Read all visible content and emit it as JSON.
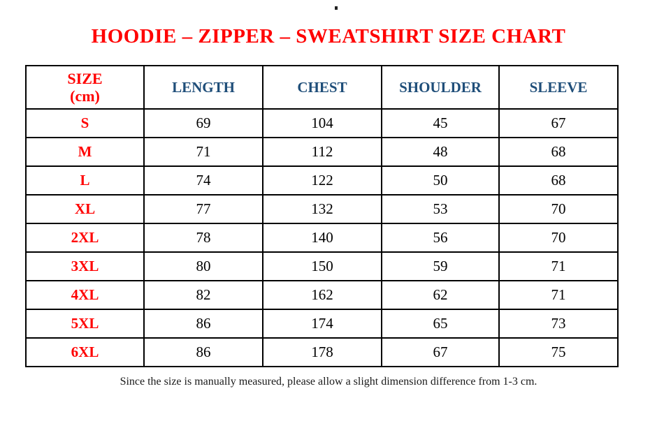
{
  "page": {
    "title": "HOODIE – ZIPPER – SWEATSHIRT SIZE CHART",
    "footnote": "Since the size is manually measured, please allow a slight dimension difference from 1-3 cm."
  },
  "colors": {
    "title_red": "#ff0000",
    "size_label_red": "#ff0000",
    "header_navy": "#1f4e79",
    "value_black": "#000000",
    "grid_border": "#000000",
    "background": "#ffffff"
  },
  "table": {
    "header": {
      "size_line1": "SIZE",
      "size_line2": "(cm)",
      "columns": [
        "LENGTH",
        "CHEST",
        "SHOULDER",
        "SLEEVE"
      ]
    },
    "rows": [
      {
        "size": "S",
        "values": [
          "69",
          "104",
          "45",
          "67"
        ]
      },
      {
        "size": "M",
        "values": [
          "71",
          "112",
          "48",
          "68"
        ]
      },
      {
        "size": "L",
        "values": [
          "74",
          "122",
          "50",
          "68"
        ]
      },
      {
        "size": "XL",
        "values": [
          "77",
          "132",
          "53",
          "70"
        ]
      },
      {
        "size": "2XL",
        "values": [
          "78",
          "140",
          "56",
          "70"
        ]
      },
      {
        "size": "3XL",
        "values": [
          "80",
          "150",
          "59",
          "71"
        ]
      },
      {
        "size": "4XL",
        "values": [
          "82",
          "162",
          "62",
          "71"
        ]
      },
      {
        "size": "5XL",
        "values": [
          "86",
          "174",
          "65",
          "73"
        ]
      },
      {
        "size": "6XL",
        "values": [
          "86",
          "178",
          "67",
          "75"
        ]
      }
    ]
  },
  "chart_data": {
    "type": "table",
    "title": "HOODIE – ZIPPER – SWEATSHIRT SIZE CHART",
    "columns": [
      "SIZE (cm)",
      "LENGTH",
      "CHEST",
      "SHOULDER",
      "SLEEVE"
    ],
    "rows": [
      [
        "S",
        69,
        104,
        45,
        67
      ],
      [
        "M",
        71,
        112,
        48,
        68
      ],
      [
        "L",
        74,
        122,
        50,
        68
      ],
      [
        "XL",
        77,
        132,
        53,
        70
      ],
      [
        "2XL",
        78,
        140,
        56,
        70
      ],
      [
        "3XL",
        80,
        150,
        59,
        71
      ],
      [
        "4XL",
        82,
        162,
        62,
        71
      ],
      [
        "5XL",
        86,
        174,
        65,
        73
      ],
      [
        "6XL",
        86,
        178,
        67,
        75
      ]
    ],
    "footnote": "Since the size is manually measured, please allow a slight dimension difference from 1-3 cm."
  }
}
